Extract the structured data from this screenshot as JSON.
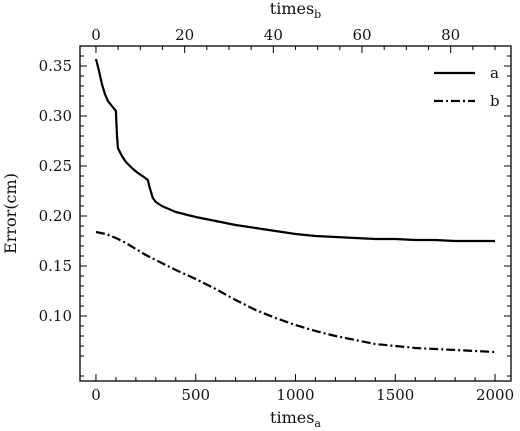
{
  "chart_data": {
    "type": "line",
    "title": "",
    "xlabel": "times",
    "xlabel_sub": "a",
    "ylabel": "Error(cm)",
    "x2label": "times",
    "x2label_sub": "b",
    "xlim": [
      -80,
      2080
    ],
    "ylim": [
      0.035,
      0.37
    ],
    "x2lim": [
      -3.6,
      93.6
    ],
    "xticks": [
      0,
      500,
      1000,
      1500,
      2000
    ],
    "xtick_labels": [
      "0",
      "500",
      "1000",
      "1500",
      "2000"
    ],
    "x2ticks": [
      0,
      20,
      40,
      60,
      80
    ],
    "x2tick_labels": [
      "0",
      "20",
      "40",
      "60",
      "80"
    ],
    "yticks": [
      0.1,
      0.15,
      0.2,
      0.25,
      0.3,
      0.35
    ],
    "ytick_labels": [
      "0.10",
      "0.15",
      "0.20",
      "0.25",
      "0.30",
      "0.35"
    ],
    "grid": false,
    "legend_position": "top-right",
    "series": [
      {
        "name": "a",
        "style": "solid",
        "color": "#000000",
        "points": [
          [
            0,
            0.357
          ],
          [
            15,
            0.345
          ],
          [
            30,
            0.332
          ],
          [
            45,
            0.322
          ],
          [
            60,
            0.315
          ],
          [
            80,
            0.31
          ],
          [
            100,
            0.305
          ],
          [
            105,
            0.282
          ],
          [
            110,
            0.268
          ],
          [
            130,
            0.26
          ],
          [
            150,
            0.254
          ],
          [
            180,
            0.248
          ],
          [
            210,
            0.243
          ],
          [
            240,
            0.239
          ],
          [
            260,
            0.236
          ],
          [
            270,
            0.228
          ],
          [
            285,
            0.218
          ],
          [
            300,
            0.214
          ],
          [
            330,
            0.21
          ],
          [
            400,
            0.204
          ],
          [
            500,
            0.199
          ],
          [
            600,
            0.195
          ],
          [
            700,
            0.191
          ],
          [
            800,
            0.188
          ],
          [
            900,
            0.185
          ],
          [
            1000,
            0.182
          ],
          [
            1100,
            0.18
          ],
          [
            1200,
            0.179
          ],
          [
            1300,
            0.178
          ],
          [
            1400,
            0.177
          ],
          [
            1500,
            0.177
          ],
          [
            1600,
            0.176
          ],
          [
            1700,
            0.176
          ],
          [
            1800,
            0.175
          ],
          [
            1900,
            0.175
          ],
          [
            2000,
            0.175
          ]
        ]
      },
      {
        "name": "b",
        "style": "dashdot",
        "color": "#000000",
        "points": [
          [
            0,
            0.184
          ],
          [
            50,
            0.182
          ],
          [
            100,
            0.178
          ],
          [
            150,
            0.173
          ],
          [
            200,
            0.167
          ],
          [
            250,
            0.161
          ],
          [
            300,
            0.156
          ],
          [
            400,
            0.146
          ],
          [
            500,
            0.137
          ],
          [
            600,
            0.127
          ],
          [
            700,
            0.116
          ],
          [
            800,
            0.106
          ],
          [
            900,
            0.098
          ],
          [
            1000,
            0.091
          ],
          [
            1100,
            0.085
          ],
          [
            1200,
            0.08
          ],
          [
            1300,
            0.076
          ],
          [
            1400,
            0.072
          ],
          [
            1500,
            0.07
          ],
          [
            1600,
            0.068
          ],
          [
            1700,
            0.067
          ],
          [
            1800,
            0.066
          ],
          [
            1900,
            0.065
          ],
          [
            2000,
            0.064
          ]
        ]
      }
    ]
  }
}
